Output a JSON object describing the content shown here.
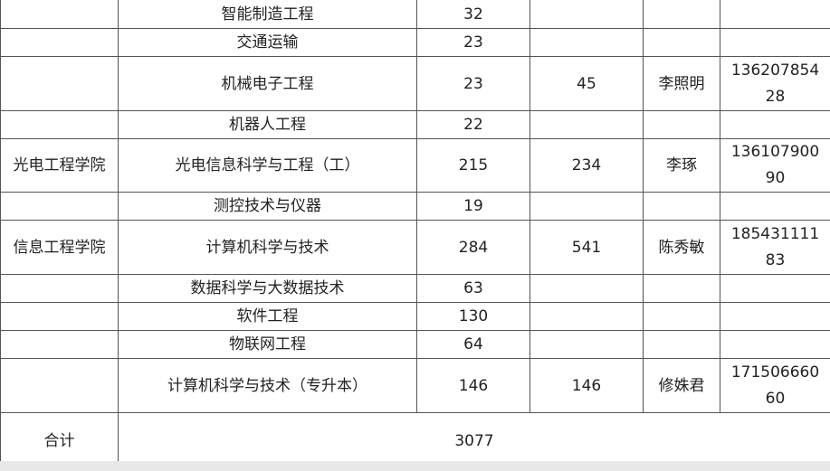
{
  "rows": [
    {
      "college": "",
      "major": "智能制造工程",
      "count": "32",
      "total": "",
      "contact": "",
      "phone": ""
    },
    {
      "college": "",
      "major": "交通运输",
      "count": "23",
      "total": "",
      "contact": "",
      "phone": ""
    },
    {
      "college": "",
      "major": "机械电子工程",
      "count": "23",
      "total": "45",
      "contact": "李照明",
      "phone": "13620785428"
    },
    {
      "college": "",
      "major": "机器人工程",
      "count": "22",
      "total": "",
      "contact": "",
      "phone": ""
    },
    {
      "college": "光电工程学院",
      "major": "光电信息科学与工程（工）",
      "count": "215",
      "total": "234",
      "contact": "李琢",
      "phone": "13610790090"
    },
    {
      "college": "",
      "major": "测控技术与仪器",
      "count": "19",
      "total": "",
      "contact": "",
      "phone": ""
    },
    {
      "college": "信息工程学院",
      "major": "计算机科学与技术",
      "count": "284",
      "total": "541",
      "contact": "陈秀敏",
      "phone": "18543111183"
    },
    {
      "college": "",
      "major": "数据科学与大数据技术",
      "count": "63",
      "total": "",
      "contact": "",
      "phone": ""
    },
    {
      "college": "",
      "major": "软件工程",
      "count": "130",
      "total": "",
      "contact": "",
      "phone": ""
    },
    {
      "college": "",
      "major": "物联网工程",
      "count": "64",
      "total": "",
      "contact": "",
      "phone": ""
    },
    {
      "college": "",
      "major": "计算机科学与技术（专升本）",
      "count": "146",
      "total": "146",
      "contact": "修姝君",
      "phone": "17150666060"
    }
  ],
  "footer": {
    "label": "合计",
    "total": "3077"
  }
}
